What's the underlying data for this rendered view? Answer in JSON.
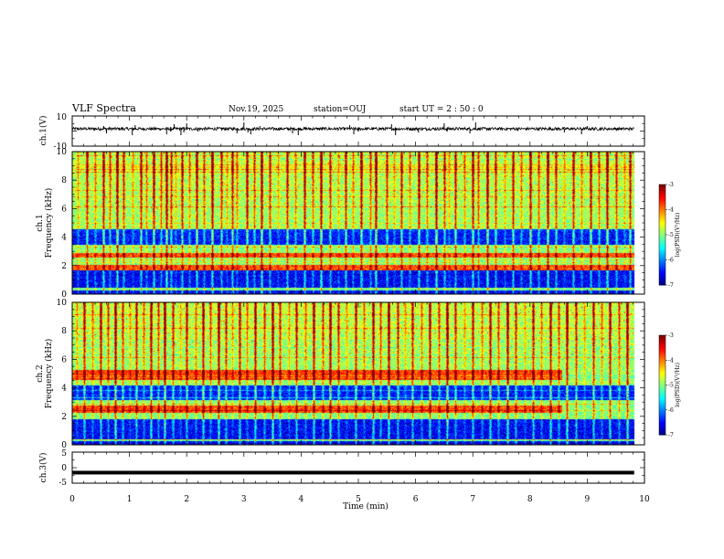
{
  "header": {
    "title": "VLF Spectra",
    "date": "Nov.19, 2025",
    "station": "station=OUJ",
    "start_ut": "start  UT =   2  : 50 : 0"
  },
  "chart_data": [
    {
      "type": "line",
      "panel": "ch1-waveform",
      "ylabel": "ch.1(V)",
      "ylim": [
        -10,
        10
      ],
      "yticks": [
        "10",
        "-10"
      ],
      "xlim": [
        0,
        10
      ],
      "baseline": 1.5,
      "noise_amplitude": 0.6,
      "spikes_min": [
        0.55,
        0.6,
        1.05,
        1.1,
        1.65,
        1.72,
        1.78,
        1.9,
        1.95,
        2.0,
        2.2,
        2.88,
        3.0,
        3.07,
        3.12,
        3.28,
        3.85,
        3.95,
        4.85,
        4.92,
        5.0,
        5.58,
        5.65,
        6.05,
        6.5,
        6.55,
        6.95,
        7.05,
        8.6,
        8.9,
        9.0
      ]
    },
    {
      "type": "heatmap",
      "panel": "ch1-spectrogram",
      "ylabel_line1": "ch.1",
      "ylabel_line2": "Frequency  (kHz)",
      "ylim_khz": [
        0,
        10
      ],
      "yticks": [
        "0",
        "2",
        "4",
        "6",
        "8",
        "10"
      ],
      "xlim_min": [
        0,
        10
      ],
      "data_end_min": 9.82,
      "colorbar": {
        "label": "log(PSD)(V²/Hz)",
        "range": [
          -7,
          -3
        ],
        "ticks": [
          "-3",
          "-4",
          "-5",
          "-6",
          "-7"
        ]
      },
      "low_bands_khz": [
        [
          3.5,
          4.6
        ],
        [
          0.5,
          1.7
        ],
        [
          0.0,
          0.3
        ]
      ],
      "high_bands_khz": [
        [
          1.7,
          2.1
        ],
        [
          2.6,
          2.9
        ]
      ],
      "impulse_lines_min": [
        0.1,
        0.25,
        0.4,
        0.55,
        0.65,
        0.78,
        0.9,
        1.05,
        1.2,
        1.3,
        1.42,
        1.55,
        1.65,
        1.72,
        1.8,
        1.92,
        2.05,
        2.18,
        2.3,
        2.45,
        2.6,
        2.7,
        2.8,
        2.88,
        3.05,
        3.18,
        3.3,
        3.45,
        3.6,
        3.75,
        3.9,
        4.05,
        4.2,
        4.35,
        4.5,
        4.65,
        4.78,
        4.9,
        5.05,
        5.2,
        5.3,
        5.5,
        5.62,
        5.75,
        5.9,
        6.05,
        6.2,
        6.35,
        6.5,
        6.58,
        6.7,
        6.85,
        7.0,
        7.1,
        7.25,
        7.4,
        7.55,
        7.7,
        7.85,
        8.0,
        8.15,
        8.3,
        8.45,
        8.6,
        8.75,
        8.9,
        9.05,
        9.2,
        9.35,
        9.5,
        9.65,
        9.75
      ]
    },
    {
      "type": "heatmap",
      "panel": "ch2-spectrogram",
      "ylabel_line1": "ch.2",
      "ylabel_line2": "Frequency  (kHz)",
      "ylim_khz": [
        0,
        10
      ],
      "yticks": [
        "0",
        "2",
        "4",
        "6",
        "8",
        "10"
      ],
      "xlim_min": [
        0,
        10
      ],
      "data_end_min": 9.82,
      "colorbar": {
        "label": "log(PSD)(V²/Hz)",
        "range": [
          -7,
          -3
        ],
        "ticks": [
          "-3",
          "-4",
          "-5",
          "-6",
          "-7"
        ]
      },
      "low_bands_khz": [
        [
          3.2,
          4.2
        ],
        [
          0.4,
          1.8
        ],
        [
          0.0,
          0.3
        ]
      ],
      "high_bands_khz": [
        [
          4.6,
          5.3
        ],
        [
          2.3,
          2.8
        ]
      ],
      "band_end_min": 8.55,
      "impulse_lines_min": [
        0.08,
        0.2,
        0.35,
        0.5,
        0.62,
        0.75,
        0.88,
        1.0,
        1.12,
        1.25,
        1.38,
        1.5,
        1.62,
        1.75,
        1.88,
        2.0,
        2.15,
        2.28,
        2.42,
        2.55,
        2.68,
        2.8,
        2.92,
        3.05,
        3.2,
        3.35,
        3.5,
        3.62,
        3.78,
        3.92,
        4.08,
        4.22,
        4.38,
        4.5,
        4.65,
        4.8,
        4.95,
        5.1,
        5.25,
        5.38,
        5.52,
        5.68,
        5.82,
        5.95,
        6.1,
        6.25,
        6.4,
        6.55,
        6.7,
        6.85,
        7.0,
        7.15,
        7.3,
        7.45,
        7.6,
        7.75,
        7.9,
        8.05,
        8.2,
        8.35,
        8.5,
        8.65,
        8.8,
        8.95,
        9.1,
        9.25,
        9.4,
        9.55,
        9.7
      ]
    },
    {
      "type": "line",
      "panel": "ch3-waveform",
      "ylabel": "ch.3(V)",
      "ylim": [
        -5,
        5
      ],
      "yticks": [
        "5",
        "0",
        "-5"
      ],
      "xlim": [
        0,
        10
      ],
      "xlabel": "Time  (min)",
      "xticks": [
        "0",
        "1",
        "2",
        "3",
        "4",
        "5",
        "6",
        "7",
        "8",
        "9",
        "10"
      ],
      "level": -1.6,
      "data_end_min": 9.82
    }
  ]
}
